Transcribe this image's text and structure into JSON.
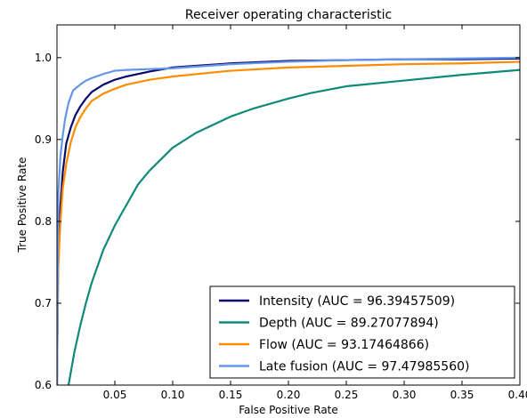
{
  "chart_data": {
    "type": "line",
    "title": "Receiver operating characteristic",
    "xlabel": "False Positive Rate",
    "ylabel": "True Positive Rate",
    "xlim": [
      0.0,
      0.4
    ],
    "ylim": [
      0.6,
      1.04
    ],
    "xticks": [
      0.05,
      0.1,
      0.15,
      0.2,
      0.25,
      0.3,
      0.35,
      0.4
    ],
    "xtick_labels": [
      "0.05",
      "0.10",
      "0.15",
      "0.20",
      "0.25",
      "0.30",
      "0.35",
      "0.40"
    ],
    "yticks": [
      0.6,
      0.7,
      0.8,
      0.9,
      1.0
    ],
    "ytick_labels": [
      "0.6",
      "0.7",
      "0.8",
      "0.9",
      "1.0"
    ],
    "grid": false,
    "legend_position": "lower-right",
    "series": [
      {
        "name": "Intensity (AUC = 96.39457509)",
        "color": "#0a0a6e",
        "x": [
          0.0,
          0.001,
          0.003,
          0.005,
          0.008,
          0.012,
          0.016,
          0.02,
          0.025,
          0.03,
          0.04,
          0.05,
          0.06,
          0.08,
          0.1,
          0.12,
          0.15,
          0.2,
          0.25,
          0.3,
          0.35,
          0.4
        ],
        "y": [
          0.6,
          0.75,
          0.82,
          0.86,
          0.895,
          0.915,
          0.93,
          0.94,
          0.95,
          0.958,
          0.967,
          0.973,
          0.977,
          0.983,
          0.988,
          0.99,
          0.993,
          0.996,
          0.997,
          0.998,
          0.998,
          0.999
        ]
      },
      {
        "name": "Depth (AUC = 89.27077894)",
        "color": "#0e8a7c",
        "x": [
          0.01,
          0.015,
          0.02,
          0.025,
          0.03,
          0.04,
          0.05,
          0.06,
          0.07,
          0.08,
          0.1,
          0.12,
          0.15,
          0.17,
          0.2,
          0.22,
          0.25,
          0.3,
          0.35,
          0.4
        ],
        "y": [
          0.6,
          0.64,
          0.672,
          0.7,
          0.725,
          0.765,
          0.795,
          0.82,
          0.845,
          0.862,
          0.89,
          0.908,
          0.928,
          0.938,
          0.95,
          0.957,
          0.965,
          0.972,
          0.979,
          0.985
        ]
      },
      {
        "name": "Flow (AUC = 93.17464866)",
        "color": "#ff8c00",
        "x": [
          0.0,
          0.001,
          0.003,
          0.005,
          0.008,
          0.012,
          0.016,
          0.02,
          0.025,
          0.03,
          0.04,
          0.05,
          0.06,
          0.08,
          0.1,
          0.15,
          0.2,
          0.25,
          0.3,
          0.35,
          0.4
        ],
        "y": [
          0.6,
          0.74,
          0.8,
          0.84,
          0.87,
          0.897,
          0.915,
          0.927,
          0.938,
          0.947,
          0.956,
          0.962,
          0.967,
          0.973,
          0.977,
          0.984,
          0.988,
          0.99,
          0.992,
          0.993,
          0.995
        ]
      },
      {
        "name": "Late fusion (AUC = 97.47985560)",
        "color": "#6495ed",
        "x": [
          0.0,
          0.001,
          0.003,
          0.005,
          0.007,
          0.01,
          0.014,
          0.02,
          0.025,
          0.03,
          0.04,
          0.05,
          0.06,
          0.08,
          0.1,
          0.15,
          0.2,
          0.25,
          0.3,
          0.35,
          0.4
        ],
        "y": [
          0.6,
          0.83,
          0.88,
          0.905,
          0.925,
          0.945,
          0.96,
          0.967,
          0.972,
          0.975,
          0.98,
          0.984,
          0.985,
          0.986,
          0.987,
          0.992,
          0.995,
          0.997,
          0.998,
          0.999,
          1.0
        ]
      }
    ]
  }
}
